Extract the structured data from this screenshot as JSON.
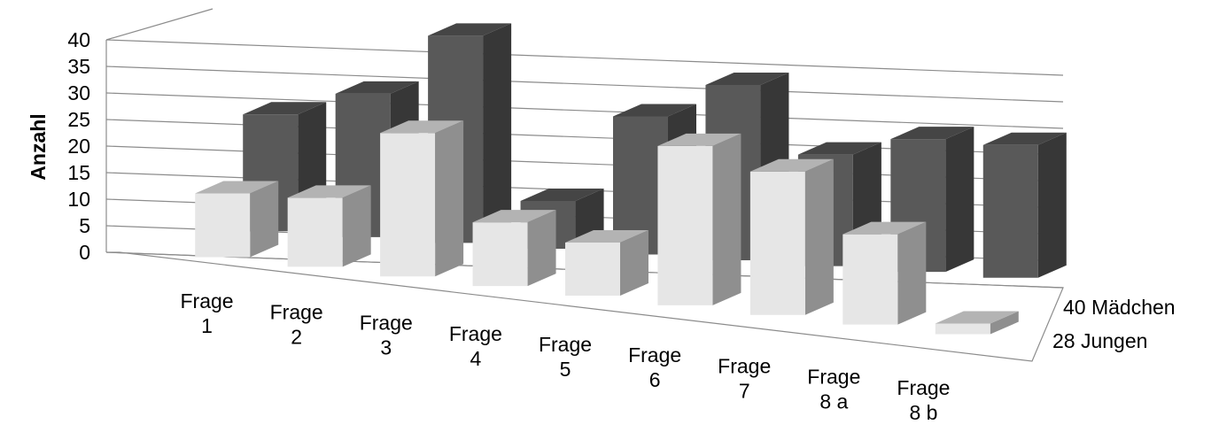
{
  "chart_data": {
    "type": "bar",
    "subtype": "3d-clustered-column",
    "ylabel": "Anzahl",
    "ylim": [
      0,
      40
    ],
    "yticks": [
      "0",
      "5",
      "10",
      "15",
      "20",
      "25",
      "30",
      "35",
      "40"
    ],
    "categories": [
      [
        "Frage",
        "1"
      ],
      [
        "Frage",
        "2"
      ],
      [
        "Frage",
        "3"
      ],
      [
        "Frage",
        "4"
      ],
      [
        "Frage",
        "5"
      ],
      [
        "Frage",
        "6"
      ],
      [
        "Frage",
        "7"
      ],
      [
        "Frage",
        "8 a"
      ],
      [
        "Frage",
        "8 b"
      ]
    ],
    "series": [
      {
        "name": "28 Jungen",
        "values": [
          12,
          13,
          27,
          12,
          10,
          30,
          27,
          17,
          2
        ],
        "color": "#e6e6e6"
      },
      {
        "name": "40 Mädchen",
        "values": [
          22,
          27,
          39,
          9,
          26,
          33,
          21,
          25,
          25
        ],
        "color": "#595959"
      }
    ],
    "grid": true,
    "legend": "series-axis-right"
  }
}
